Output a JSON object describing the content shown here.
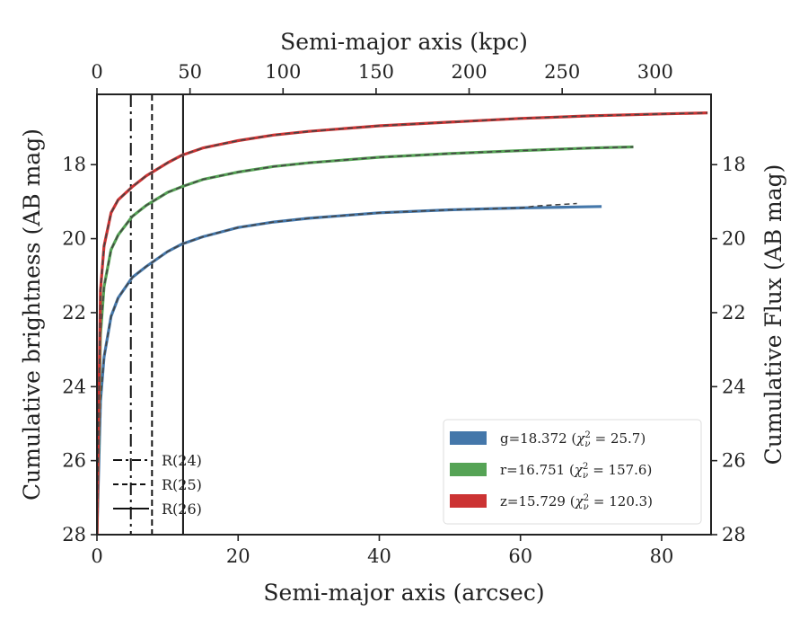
{
  "chart_data": {
    "type": "line",
    "xlabel": "Semi-major axis (arcsec)",
    "x2label": "Semi-major axis (kpc)",
    "ylabel": "Cumulative brightness (AB mag)",
    "y2label": "Cumulative Flux (AB mag)",
    "xlim": [
      0,
      87
    ],
    "x2lim": [
      0,
      330
    ],
    "ylim": [
      28,
      16.1
    ],
    "y_inverted": true,
    "x_ticks": [
      0,
      20,
      40,
      60,
      80
    ],
    "x2_ticks": [
      0,
      50,
      100,
      150,
      200,
      250,
      300
    ],
    "y_ticks": [
      18,
      20,
      22,
      24,
      26,
      28
    ],
    "y2_ticks": [
      18,
      20,
      22,
      24,
      26,
      28
    ],
    "grid": false,
    "legend_position": "lower-right",
    "series": [
      {
        "name": "g",
        "legend_label": "g=18.372",
        "chi2": "25.7",
        "color": "#4477aa",
        "x": [
          0,
          0.5,
          1,
          2,
          3,
          5,
          7,
          10,
          12,
          15,
          20,
          25,
          30,
          40,
          50,
          60,
          66,
          71.5
        ],
        "y": [
          28.0,
          24.4,
          23.2,
          22.1,
          21.6,
          21.05,
          20.75,
          20.35,
          20.15,
          19.95,
          19.7,
          19.55,
          19.45,
          19.3,
          19.22,
          19.17,
          19.15,
          19.13
        ],
        "model_end": [
          [
            62,
            19.12
          ],
          [
            68,
            19.05
          ]
        ]
      },
      {
        "name": "r",
        "legend_label": "r=16.751",
        "chi2": "157.6",
        "color": "#55a355",
        "x": [
          0,
          0.5,
          1,
          2,
          3,
          5,
          7,
          10,
          12,
          15,
          20,
          25,
          30,
          40,
          50,
          60,
          70,
          76
        ],
        "y": [
          28.0,
          22.6,
          21.3,
          20.3,
          19.9,
          19.4,
          19.1,
          18.75,
          18.6,
          18.4,
          18.2,
          18.05,
          17.95,
          17.8,
          17.7,
          17.62,
          17.55,
          17.52
        ]
      },
      {
        "name": "z",
        "legend_label": "z=15.729",
        "chi2": "120.3",
        "color": "#cc3333",
        "x": [
          0,
          0.5,
          1,
          2,
          3,
          5,
          7,
          10,
          12,
          15,
          20,
          25,
          30,
          40,
          50,
          60,
          70,
          80,
          86.5
        ],
        "y": [
          28.0,
          21.4,
          20.2,
          19.3,
          18.95,
          18.6,
          18.3,
          17.95,
          17.75,
          17.55,
          17.35,
          17.2,
          17.1,
          16.95,
          16.85,
          16.75,
          16.68,
          16.63,
          16.6
        ]
      }
    ],
    "reference_lines": [
      {
        "label": "R(24)",
        "x": 4.8,
        "style": "dashdot"
      },
      {
        "label": "R(25)",
        "x": 7.8,
        "style": "dashed"
      },
      {
        "label": "R(26)",
        "x": 12.2,
        "style": "solid"
      }
    ]
  }
}
